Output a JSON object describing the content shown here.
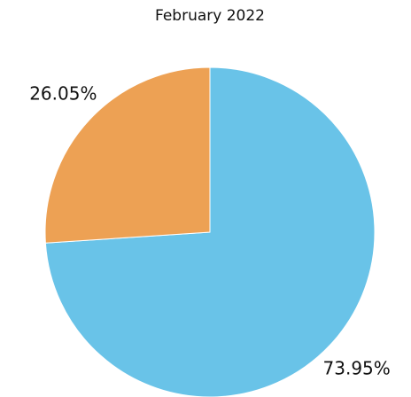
{
  "chart_data": {
    "type": "pie",
    "title": "February 2022",
    "values": [
      73.95,
      26.05
    ],
    "value_labels": [
      "73.95%",
      "26.05%"
    ],
    "colors": [
      "#69c3e8",
      "#eda154"
    ]
  }
}
